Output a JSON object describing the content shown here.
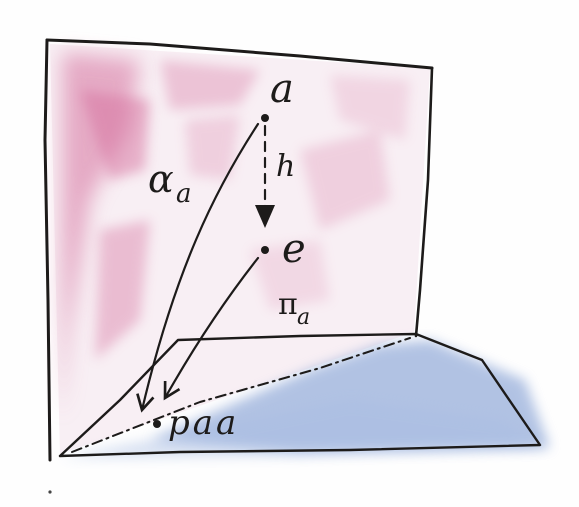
{
  "labels": {
    "point_a": "a",
    "point_e": "e",
    "point_paa": "paa",
    "arrow_h": "h",
    "arrow_alpha": "α",
    "arrow_alpha_sub": "a",
    "arrow_pi": "π",
    "arrow_pi_sub": "a"
  },
  "colors": {
    "ink": "#1d1b1a",
    "vertical_plane_wash": "#d6729f",
    "horizontal_plane_wash": "#7f9bd2",
    "paper": "#fefefe"
  }
}
